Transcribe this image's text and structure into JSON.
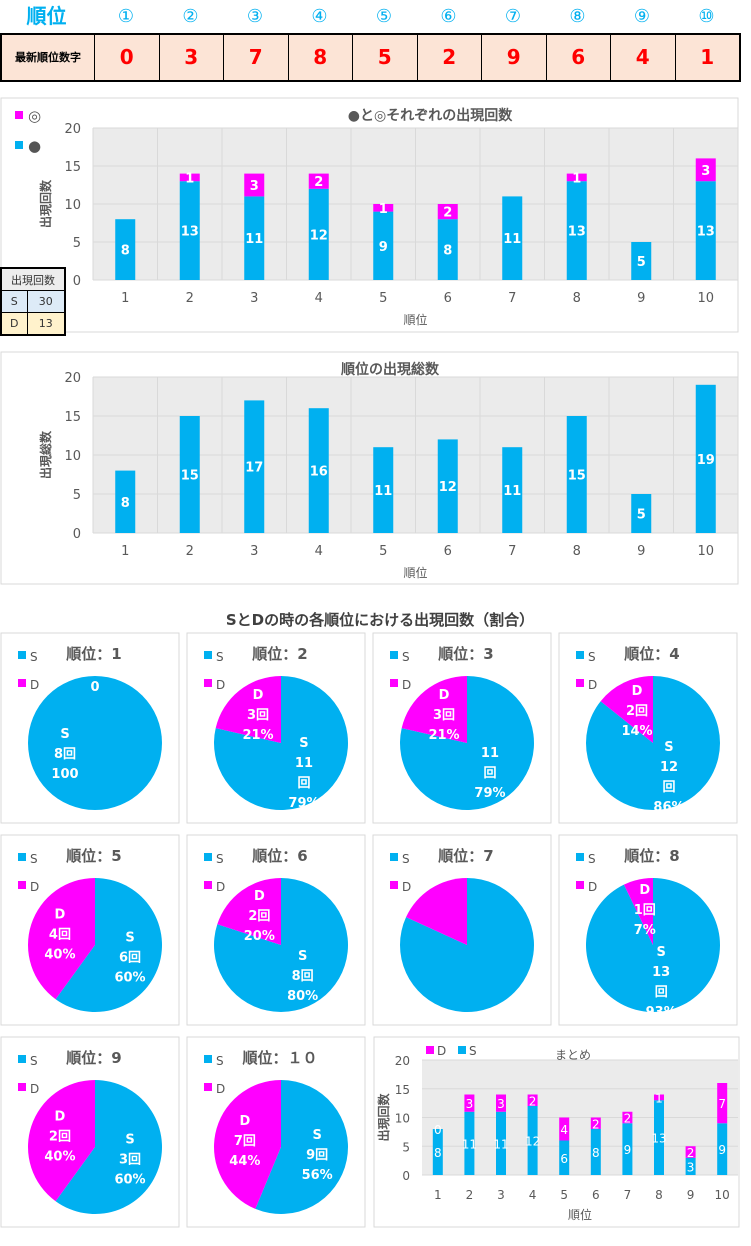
{
  "header": {
    "title": "順位",
    "ranks": [
      "①",
      "②",
      "③",
      "④",
      "⑤",
      "⑥",
      "⑦",
      "⑧",
      "⑨",
      "⑩"
    ],
    "row_label": "最新順位数字",
    "digits": [
      "0",
      "3",
      "7",
      "8",
      "5",
      "2",
      "9",
      "6",
      "4",
      "1"
    ]
  },
  "colors": {
    "blue": "#00b0f0",
    "pink": "#ff00ff"
  },
  "mini_table": {
    "title": "出現回数",
    "rows": [
      {
        "label": "S",
        "value": "30"
      },
      {
        "label": "D",
        "value": "13"
      }
    ]
  },
  "section_title": "SとDの時の各順位における出現回数（割合）",
  "chart_data": [
    {
      "type": "bar",
      "stacked": true,
      "title": "●と◎それぞれの出現回数",
      "xlabel": "順位",
      "ylabel": "出現回数",
      "ylim": [
        0,
        20
      ],
      "yticks": [
        0,
        5,
        10,
        15,
        20
      ],
      "categories": [
        "1",
        "2",
        "3",
        "4",
        "5",
        "6",
        "7",
        "8",
        "9",
        "10"
      ],
      "series": [
        {
          "name": "●",
          "color": "#00b0f0",
          "values": [
            8,
            13,
            11,
            12,
            9,
            8,
            11,
            13,
            5,
            13
          ]
        },
        {
          "name": "◎",
          "color": "#ff00ff",
          "values": [
            0,
            1,
            3,
            2,
            1,
            2,
            0,
            1,
            0,
            3
          ]
        }
      ],
      "legend": "top-left"
    },
    {
      "type": "bar",
      "title": "順位の出現総数",
      "xlabel": "順位",
      "ylabel": "出現総数",
      "ylim": [
        0,
        20
      ],
      "yticks": [
        0,
        5,
        10,
        15,
        20
      ],
      "categories": [
        "1",
        "2",
        "3",
        "4",
        "5",
        "6",
        "7",
        "8",
        "9",
        "10"
      ],
      "series": [
        {
          "name": "総数",
          "color": "#00b0f0",
          "values": [
            8,
            15,
            17,
            16,
            11,
            12,
            11,
            15,
            5,
            19
          ]
        }
      ]
    },
    {
      "type": "pie",
      "pies": [
        {
          "title": "順位：1",
          "S": 8,
          "D": 0,
          "labels": {
            "S": [
              "S",
              "8回",
              "100"
            ],
            "D": [
              "0"
            ]
          }
        },
        {
          "title": "順位：2",
          "S": 11,
          "D": 3,
          "labels": {
            "S": [
              "S",
              "11",
              "回",
              "79%"
            ],
            "D": [
              "D",
              "3回",
              "21%"
            ]
          }
        },
        {
          "title": "順位：3",
          "S": 11,
          "D": 3,
          "labels": {
            "S": [
              "11",
              "回",
              "79%"
            ],
            "D": [
              "D",
              "3回",
              "21%"
            ]
          }
        },
        {
          "title": "順位：4",
          "S": 12,
          "D": 2,
          "labels": {
            "S": [
              "S",
              "12",
              "回",
              "86%"
            ],
            "D": [
              "D",
              "2回",
              "14%"
            ]
          }
        },
        {
          "title": "順位：5",
          "S": 6,
          "D": 4,
          "labels": {
            "S": [
              "S",
              "6回",
              "60%"
            ],
            "D": [
              "D",
              "4回",
              "40%"
            ]
          }
        },
        {
          "title": "順位：6",
          "S": 8,
          "D": 2,
          "labels": {
            "S": [
              "S",
              "8回",
              "80%"
            ],
            "D": [
              "D",
              "2回",
              "20%"
            ]
          }
        },
        {
          "title": "順位：7",
          "S": 9,
          "D": 2,
          "labels": {
            "S": [],
            "D": []
          }
        },
        {
          "title": "順位：8",
          "S": 13,
          "D": 1,
          "labels": {
            "S": [
              "S",
              "13",
              "回",
              "93%"
            ],
            "D": [
              "D",
              "1回",
              "7%"
            ]
          }
        },
        {
          "title": "順位：9",
          "S": 3,
          "D": 2,
          "labels": {
            "S": [
              "S",
              "3回",
              "60%"
            ],
            "D": [
              "D",
              "2回",
              "40%"
            ]
          }
        },
        {
          "title": "順位：１０",
          "S": 9,
          "D": 7,
          "labels": {
            "S": [
              "S",
              "9回",
              "56%"
            ],
            "D": [
              "D",
              "7回",
              "44%"
            ]
          }
        }
      ],
      "legend": [
        "S",
        "D"
      ]
    },
    {
      "type": "bar",
      "stacked": true,
      "title": "まとめ",
      "xlabel": "順位",
      "ylabel": "出現回数",
      "ylim": [
        0,
        20
      ],
      "yticks": [
        0,
        5,
        10,
        15,
        20
      ],
      "categories": [
        "1",
        "2",
        "3",
        "4",
        "5",
        "6",
        "7",
        "8",
        "9",
        "10"
      ],
      "series": [
        {
          "name": "S",
          "color": "#00b0f0",
          "values": [
            8,
            11,
            11,
            12,
            6,
            8,
            9,
            13,
            3,
            9
          ]
        },
        {
          "name": "D",
          "color": "#ff00ff",
          "values": [
            0,
            3,
            3,
            2,
            4,
            2,
            2,
            1,
            2,
            7
          ]
        }
      ],
      "legend": "top-left"
    }
  ]
}
